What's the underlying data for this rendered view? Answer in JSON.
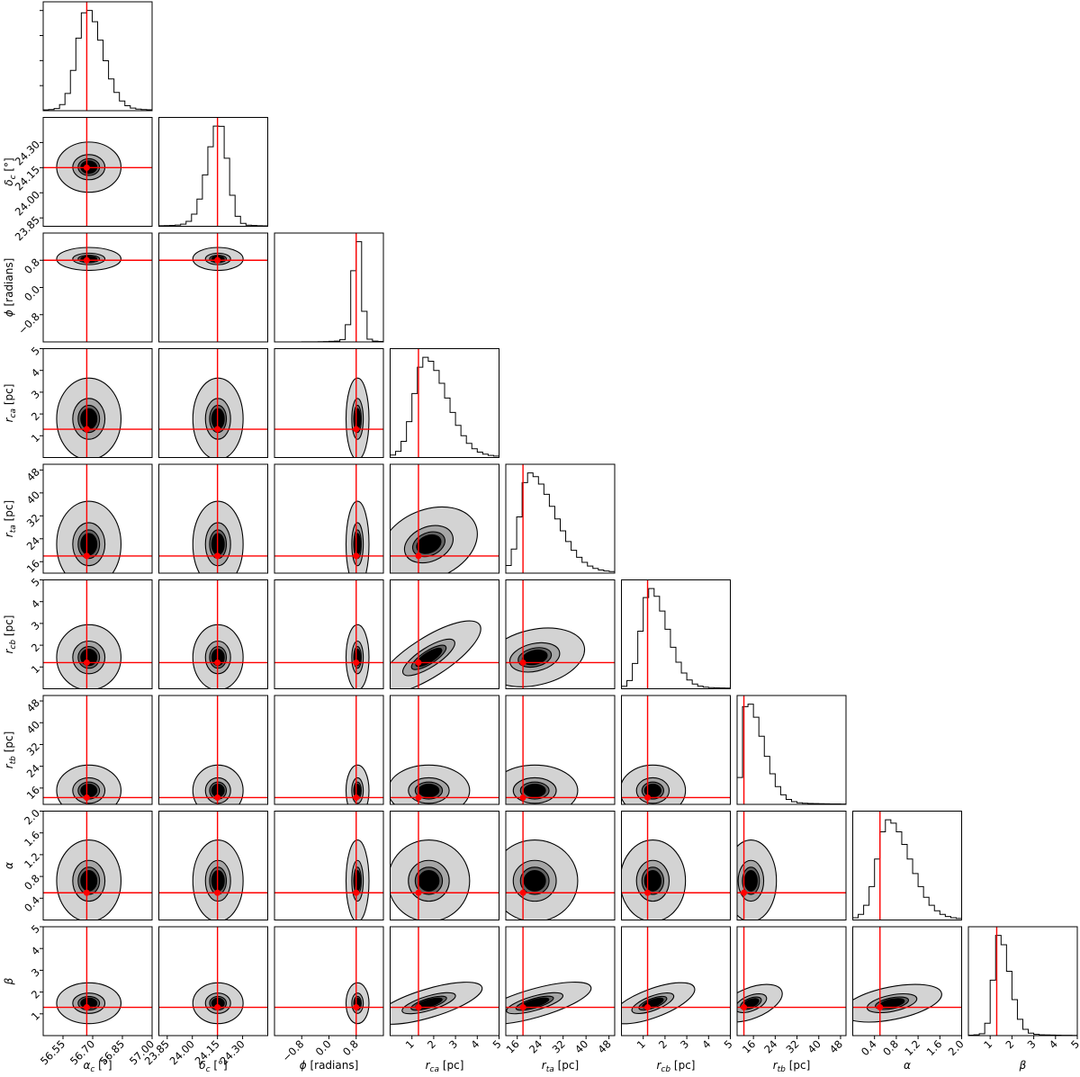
{
  "chart_data": {
    "type": "corner",
    "parameters": [
      {
        "label_main": "α",
        "label_sub": "c",
        "label_unit": " [°]",
        "range": [
          56.45,
          57.0
        ],
        "ticks": [
          56.55,
          56.7,
          56.85,
          57.0
        ],
        "tick_labels": [
          "56.55",
          "56.70",
          "56.85",
          "57.00"
        ],
        "truth": 56.67,
        "peak": 56.67,
        "spread_lo": 0.05,
        "spread_hi": 0.08
      },
      {
        "label_main": "δ",
        "label_sub": "c",
        "label_unit": " [°]",
        "range": [
          23.8,
          24.45
        ],
        "ticks": [
          23.85,
          24.0,
          24.15,
          24.3
        ],
        "tick_labels": [
          "23.85",
          "24.00",
          "24.15",
          "24.30"
        ],
        "truth": 24.15,
        "peak": 24.16,
        "spread_lo": 0.07,
        "spread_hi": 0.05
      },
      {
        "label_main": "ϕ",
        "label_sub": "",
        "label_unit": " [radians]",
        "range": [
          -1.6,
          1.6
        ],
        "ticks": [
          -0.8,
          0.0,
          0.8
        ],
        "tick_labels": [
          "−0.8",
          "0.0",
          "0.8"
        ],
        "truth": 0.8,
        "peak": 0.85,
        "spread_lo": 0.15,
        "spread_hi": 0.12
      },
      {
        "label_main": "r",
        "label_sub": "ca",
        "label_unit": " [pc]",
        "range": [
          0.0,
          5.0
        ],
        "ticks": [
          1,
          2,
          3,
          4,
          5
        ],
        "tick_labels": [
          "1",
          "2",
          "3",
          "4",
          "5"
        ],
        "truth": 1.3,
        "peak": 1.6,
        "spread_lo": 0.5,
        "spread_hi": 1.0
      },
      {
        "label_main": "r",
        "label_sub": "ta",
        "label_unit": " [pc]",
        "range": [
          12.0,
          50.0
        ],
        "ticks": [
          16,
          24,
          32,
          40,
          48
        ],
        "tick_labels": [
          "16",
          "24",
          "32",
          "40",
          "48"
        ],
        "truth": 18.0,
        "peak": 20.0,
        "spread_lo": 3.0,
        "spread_hi": 9.0
      },
      {
        "label_main": "r",
        "label_sub": "cb",
        "label_unit": " [pc]",
        "range": [
          0.0,
          5.0
        ],
        "ticks": [
          1,
          2,
          3,
          4,
          5
        ],
        "tick_labels": [
          "1",
          "2",
          "3",
          "4",
          "5"
        ],
        "truth": 1.2,
        "peak": 1.3,
        "spread_lo": 0.4,
        "spread_hi": 0.8
      },
      {
        "label_main": "r",
        "label_sub": "tb",
        "label_unit": " [pc]",
        "range": [
          10.0,
          50.0
        ],
        "ticks": [
          16,
          24,
          32,
          40,
          48
        ],
        "tick_labels": [
          "16",
          "24",
          "32",
          "40",
          "48"
        ],
        "truth": 12.5,
        "peak": 13.5,
        "spread_lo": 1.5,
        "spread_hi": 6.0
      },
      {
        "label_main": "α",
        "label_sub": "",
        "label_unit": "",
        "range": [
          0.0,
          2.0
        ],
        "ticks": [
          0.4,
          0.8,
          1.2,
          1.6,
          2.0
        ],
        "tick_labels": [
          "0.4",
          "0.8",
          "1.2",
          "1.6",
          "2.0"
        ],
        "truth": 0.5,
        "peak": 0.65,
        "spread_lo": 0.2,
        "spread_hi": 0.4
      },
      {
        "label_main": "β",
        "label_sub": "",
        "label_unit": "",
        "range": [
          0.0,
          5.0
        ],
        "ticks": [
          1,
          2,
          3,
          4,
          5
        ],
        "tick_labels": [
          "1",
          "2",
          "3",
          "4",
          "5"
        ],
        "truth": 1.3,
        "peak": 1.4,
        "spread_lo": 0.25,
        "spread_hi": 0.5
      }
    ],
    "correlations": {
      "3-5": 0.8,
      "3-8": 0.6,
      "4-8": 0.6,
      "5-8": 0.6,
      "6-8": 0.5,
      "7-8": 0.4,
      "4-5": 0.3,
      "3-4": 0.4
    },
    "contour_levels": [
      0.5,
      1.0,
      1.5,
      2.0
    ],
    "contour_fills": [
      "#d3d3d3",
      "#a6a6a6",
      "#636363",
      "#000000"
    ],
    "truth_color": "#ff0000",
    "hist_bins": 20,
    "grid": false
  }
}
